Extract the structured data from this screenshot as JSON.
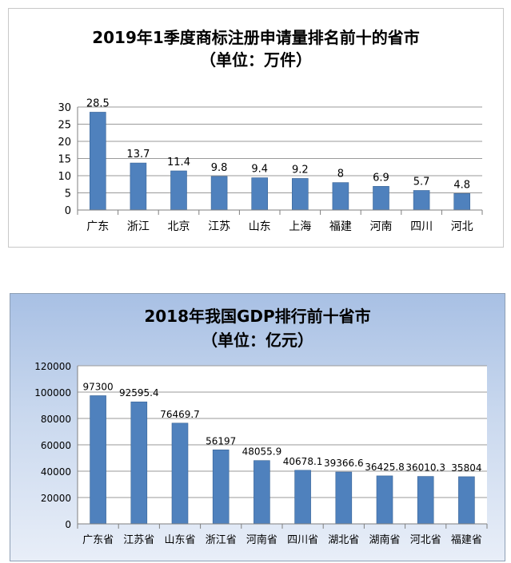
{
  "chart_data": [
    {
      "type": "bar",
      "title": "2019年1季度商标注册申请量排名前十的省市",
      "subtitle": "（单位：万件）",
      "categories": [
        "广东",
        "浙江",
        "北京",
        "江苏",
        "山东",
        "上海",
        "福建",
        "河南",
        "四川",
        "河北"
      ],
      "values": [
        28.5,
        13.7,
        11.4,
        9.8,
        9.4,
        9.2,
        8,
        6.9,
        5.7,
        4.8
      ],
      "data_labels": [
        "28.5",
        "13.7",
        "11.4",
        "9.8",
        "9.4",
        "9.2",
        "8",
        "6.9",
        "5.7",
        "4.8"
      ],
      "yticks": [
        "0",
        "5",
        "10",
        "15",
        "20",
        "25",
        "30"
      ],
      "ylim": [
        0,
        30
      ],
      "grid": true,
      "legend": "none",
      "bar_color": "#4f81bd"
    },
    {
      "type": "bar",
      "title": "2018年我国GDP排行前十省市",
      "subtitle": "（单位：亿元）",
      "categories": [
        "广东省",
        "江苏省",
        "山东省",
        "浙江省",
        "河南省",
        "四川省",
        "湖北省",
        "湖南省",
        "河北省",
        "福建省"
      ],
      "values": [
        97300,
        92595.4,
        76469.7,
        56197,
        48055.9,
        40678.1,
        39366.6,
        36425.8,
        36010.3,
        35804
      ],
      "data_labels": [
        "97300",
        "92595.4",
        "76469.7",
        "56197",
        "48055.9",
        "40678.1",
        "39366.6",
        "36425.8",
        "36010.3",
        "35804"
      ],
      "yticks": [
        "0",
        "20000",
        "40000",
        "60000",
        "80000",
        "100000",
        "120000"
      ],
      "ylim": [
        0,
        120000
      ],
      "grid": true,
      "legend": "none",
      "bar_color": "#4f81bd"
    }
  ]
}
